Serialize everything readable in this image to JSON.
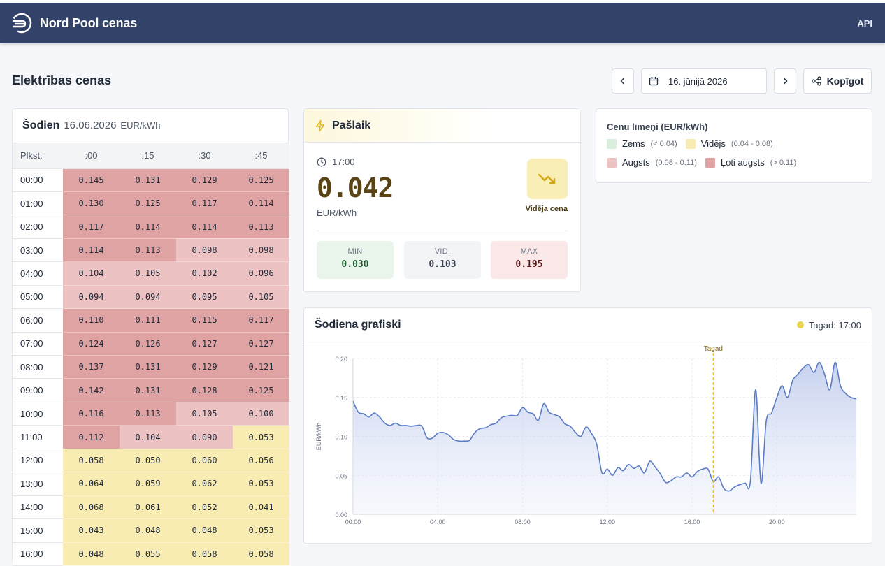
{
  "header": {
    "brand": "Nord Pool cenas",
    "api_label": "API"
  },
  "page": {
    "title": "Elektrības cenas"
  },
  "datenav": {
    "date_label": "16. jūnijā 2026",
    "share_label": "Kopīgot"
  },
  "table": {
    "title": "Šodien",
    "date": "16.06.2026",
    "unit": "EUR/kWh",
    "columns": [
      "Plkst.",
      ":00",
      ":15",
      ":30",
      ":45"
    ],
    "rows": [
      {
        "hour": "00:00",
        "values": [
          "0.145",
          "0.131",
          "0.129",
          "0.125"
        ],
        "levels": [
          "vh",
          "vh",
          "vh",
          "vh"
        ]
      },
      {
        "hour": "01:00",
        "values": [
          "0.130",
          "0.125",
          "0.117",
          "0.114"
        ],
        "levels": [
          "vh",
          "vh",
          "vh",
          "vh"
        ]
      },
      {
        "hour": "02:00",
        "values": [
          "0.117",
          "0.114",
          "0.114",
          "0.113"
        ],
        "levels": [
          "vh",
          "vh",
          "vh",
          "vh"
        ]
      },
      {
        "hour": "03:00",
        "values": [
          "0.114",
          "0.113",
          "0.098",
          "0.098"
        ],
        "levels": [
          "vh",
          "vh",
          "h",
          "h"
        ]
      },
      {
        "hour": "04:00",
        "values": [
          "0.104",
          "0.105",
          "0.102",
          "0.096"
        ],
        "levels": [
          "h",
          "h",
          "h",
          "h"
        ]
      },
      {
        "hour": "05:00",
        "values": [
          "0.094",
          "0.094",
          "0.095",
          "0.105"
        ],
        "levels": [
          "h",
          "h",
          "h",
          "h"
        ]
      },
      {
        "hour": "06:00",
        "values": [
          "0.110",
          "0.111",
          "0.115",
          "0.117"
        ],
        "levels": [
          "vh",
          "vh",
          "vh",
          "vh"
        ]
      },
      {
        "hour": "07:00",
        "values": [
          "0.124",
          "0.126",
          "0.127",
          "0.127"
        ],
        "levels": [
          "vh",
          "vh",
          "vh",
          "vh"
        ]
      },
      {
        "hour": "08:00",
        "values": [
          "0.137",
          "0.131",
          "0.129",
          "0.121"
        ],
        "levels": [
          "vh",
          "vh",
          "vh",
          "vh"
        ]
      },
      {
        "hour": "09:00",
        "values": [
          "0.142",
          "0.131",
          "0.128",
          "0.125"
        ],
        "levels": [
          "vh",
          "vh",
          "vh",
          "vh"
        ]
      },
      {
        "hour": "10:00",
        "values": [
          "0.116",
          "0.113",
          "0.105",
          "0.100"
        ],
        "levels": [
          "vh",
          "vh",
          "h",
          "h"
        ]
      },
      {
        "hour": "11:00",
        "values": [
          "0.112",
          "0.104",
          "0.090",
          "0.053"
        ],
        "levels": [
          "vh",
          "h",
          "h",
          "m"
        ]
      },
      {
        "hour": "12:00",
        "values": [
          "0.058",
          "0.050",
          "0.060",
          "0.056"
        ],
        "levels": [
          "m",
          "m",
          "m",
          "m"
        ]
      },
      {
        "hour": "13:00",
        "values": [
          "0.064",
          "0.059",
          "0.062",
          "0.053"
        ],
        "levels": [
          "m",
          "m",
          "m",
          "m"
        ]
      },
      {
        "hour": "14:00",
        "values": [
          "0.068",
          "0.061",
          "0.052",
          "0.041"
        ],
        "levels": [
          "m",
          "m",
          "m",
          "m"
        ]
      },
      {
        "hour": "15:00",
        "values": [
          "0.043",
          "0.048",
          "0.048",
          "0.053"
        ],
        "levels": [
          "m",
          "m",
          "m",
          "m"
        ]
      },
      {
        "hour": "16:00",
        "values": [
          "0.048",
          "0.055",
          "0.058",
          "0.058"
        ],
        "levels": [
          "m",
          "m",
          "m",
          "m"
        ]
      }
    ]
  },
  "current": {
    "title": "Pašlaik",
    "time": "17:00",
    "price": "0.042",
    "unit": "EUR/kWh",
    "trend_label": "Vidēja cena",
    "min_label": "MIN",
    "min_value": "0.030",
    "avg_label": "VID.",
    "avg_value": "0.103",
    "max_label": "MAX",
    "max_value": "0.195"
  },
  "legend": {
    "title": "Cenu līmeņi (EUR/kWh)",
    "items": [
      {
        "name": "Zems",
        "range": "(< 0.04)",
        "color": "#d8efdc"
      },
      {
        "name": "Vidējs",
        "range": "(0.04 - 0.08)",
        "color": "#f8ecb3"
      },
      {
        "name": "Augsts",
        "range": "(0.08 - 0.11)",
        "color": "#ecc2c2"
      },
      {
        "name": "Ļoti augsts",
        "range": "(> 0.11)",
        "color": "#dfa3a3"
      }
    ]
  },
  "graph": {
    "title": "Šodiena grafiski",
    "now_label": "Tagad: 17:00"
  },
  "chart_data": {
    "type": "area",
    "ylabel": "EUR/kWh",
    "ylim": [
      0,
      0.2
    ],
    "yticks": [
      "0.00",
      "0.05",
      "0.10",
      "0.15",
      "0.20"
    ],
    "xticks": [
      "00:00",
      "04:00",
      "08:00",
      "12:00",
      "16:00",
      "20:00"
    ],
    "now_marker": {
      "hour": 17,
      "label": "Tagad"
    },
    "color": "#5b7bc4",
    "x_hours": [
      0,
      0.25,
      0.5,
      0.75,
      1,
      1.25,
      1.5,
      1.75,
      2,
      2.25,
      2.5,
      2.75,
      3,
      3.25,
      3.5,
      3.75,
      4,
      4.25,
      4.5,
      4.75,
      5,
      5.25,
      5.5,
      5.75,
      6,
      6.25,
      6.5,
      6.75,
      7,
      7.25,
      7.5,
      7.75,
      8,
      8.25,
      8.5,
      8.75,
      9,
      9.25,
      9.5,
      9.75,
      10,
      10.25,
      10.5,
      10.75,
      11,
      11.25,
      11.5,
      11.75,
      12,
      12.25,
      12.5,
      12.75,
      13,
      13.25,
      13.5,
      13.75,
      14,
      14.25,
      14.5,
      14.75,
      15,
      15.25,
      15.5,
      15.75,
      16,
      16.25,
      16.5,
      16.75,
      17,
      17.25,
      17.5,
      17.75,
      18,
      18.25,
      18.5,
      18.75,
      19,
      19.25,
      19.5,
      19.75,
      20,
      20.25,
      20.5,
      20.75,
      21,
      21.25,
      21.5,
      21.75,
      22,
      22.25,
      22.5,
      22.75,
      23,
      23.25,
      23.5,
      23.75
    ],
    "values": [
      0.145,
      0.131,
      0.129,
      0.125,
      0.13,
      0.125,
      0.117,
      0.114,
      0.117,
      0.114,
      0.114,
      0.113,
      0.114,
      0.113,
      0.098,
      0.098,
      0.104,
      0.105,
      0.102,
      0.096,
      0.094,
      0.094,
      0.095,
      0.105,
      0.11,
      0.111,
      0.115,
      0.117,
      0.124,
      0.126,
      0.127,
      0.127,
      0.137,
      0.131,
      0.129,
      0.121,
      0.142,
      0.131,
      0.128,
      0.125,
      0.116,
      0.113,
      0.105,
      0.1,
      0.112,
      0.104,
      0.09,
      0.053,
      0.058,
      0.05,
      0.06,
      0.056,
      0.064,
      0.059,
      0.062,
      0.053,
      0.068,
      0.061,
      0.052,
      0.041,
      0.043,
      0.048,
      0.048,
      0.053,
      0.048,
      0.055,
      0.058,
      0.058,
      0.042,
      0.048,
      0.033,
      0.03,
      0.035,
      0.038,
      0.04,
      0.042,
      0.16,
      0.04,
      0.12,
      0.13,
      0.15,
      0.165,
      0.15,
      0.172,
      0.18,
      0.188,
      0.192,
      0.182,
      0.195,
      0.18,
      0.16,
      0.195,
      0.165,
      0.155,
      0.15,
      0.148
    ]
  }
}
